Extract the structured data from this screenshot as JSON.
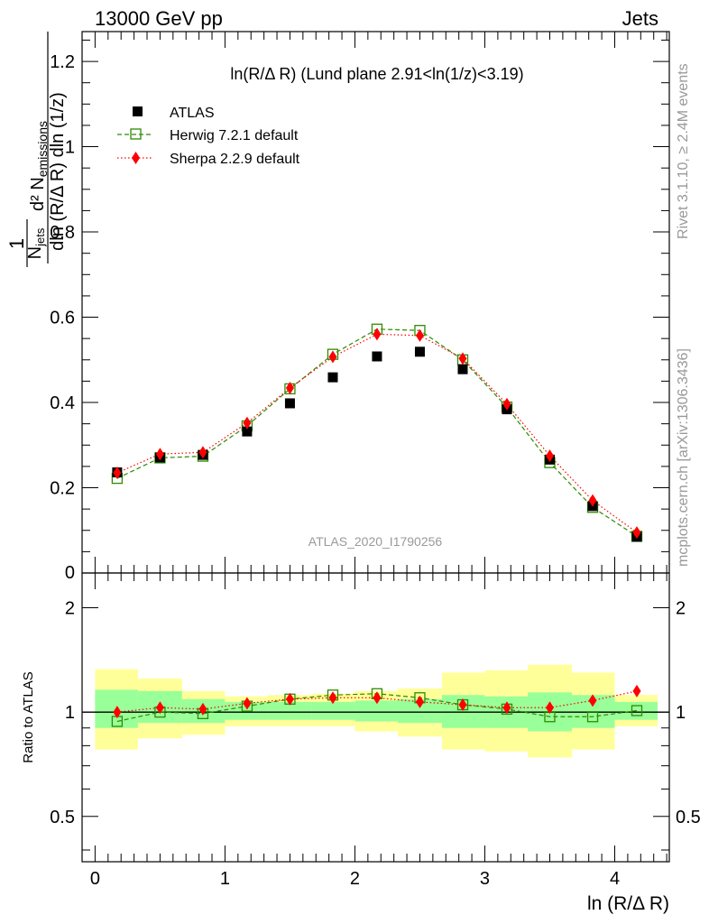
{
  "header": {
    "left": "13000 GeV pp",
    "right": "Jets"
  },
  "side_labels": {
    "rivet": "Rivet 3.1.10, ≥ 2.4M events",
    "mcplots": "mcplots.cern.ch [arXiv:1306.3436]"
  },
  "legend": {
    "atlas": "ATLAS",
    "herwig": "Herwig 7.2.1 default",
    "sherpa": "Sherpa 2.2.9 default"
  },
  "colors": {
    "atlas": "#000000",
    "herwig": "#2e8b00",
    "sherpa": "#ff0000",
    "band_inner": "#99ff99",
    "band_outer": "#ffff99"
  },
  "chart_data": {
    "type": "scatter",
    "title": "ln(R/Δ R) (Lund plane 2.91<ln(1/z)<3.19)",
    "watermark": "ATLAS_2020_I1790256",
    "xlabel": "ln (R/Δ R)",
    "ylabel": "1/N_jets d²N_emissions / dln(R/ΔR) dln(1/z)",
    "ratio_ylabel": "Ratio to ATLAS",
    "xlim": [
      -0.1,
      4.42
    ],
    "ylim": [
      0,
      1.27
    ],
    "ratio_ylim": [
      0.37,
      2.52
    ],
    "x_ticks": [
      "0",
      "1",
      "2",
      "3",
      "4"
    ],
    "y_ticks": [
      "0.2",
      "0.4",
      "0.6",
      "0.8",
      "1",
      "1.2"
    ],
    "y_tick_bottom": "0",
    "ratio_y_ticks": [
      "0.5",
      "1",
      "2"
    ],
    "bins": [
      [
        0,
        0.33
      ],
      [
        0.33,
        0.67
      ],
      [
        0.67,
        1.0
      ],
      [
        1.0,
        1.33
      ],
      [
        1.33,
        1.67
      ],
      [
        1.67,
        2.0
      ],
      [
        2.0,
        2.33
      ],
      [
        2.33,
        2.67
      ],
      [
        2.67,
        3.0
      ],
      [
        3.0,
        3.33
      ],
      [
        3.33,
        3.67
      ],
      [
        3.67,
        4.0
      ],
      [
        4.0,
        4.33
      ]
    ],
    "x": [
      0.17,
      0.5,
      0.83,
      1.17,
      1.5,
      1.83,
      2.17,
      2.5,
      2.83,
      3.17,
      3.5,
      3.83,
      4.17
    ],
    "series": [
      {
        "name": "ATLAS",
        "values": [
          0.236,
          0.271,
          0.277,
          0.332,
          0.398,
          0.459,
          0.508,
          0.519,
          0.478,
          0.384,
          0.266,
          0.157,
          0.085
        ]
      },
      {
        "name": "Herwig 7.2.1 default",
        "values": [
          0.222,
          0.27,
          0.274,
          0.345,
          0.432,
          0.513,
          0.572,
          0.569,
          0.5,
          0.389,
          0.259,
          0.154,
          0.086
        ]
      },
      {
        "name": "Sherpa 2.2.9 default",
        "values": [
          0.235,
          0.279,
          0.283,
          0.352,
          0.434,
          0.507,
          0.56,
          0.557,
          0.503,
          0.396,
          0.275,
          0.17,
          0.095
        ]
      }
    ],
    "ratio": {
      "herwig": [
        0.94,
        1.0,
        0.99,
        1.04,
        1.09,
        1.12,
        1.13,
        1.1,
        1.05,
        1.02,
        0.97,
        0.97,
        1.01
      ],
      "sherpa": [
        1.0,
        1.03,
        1.02,
        1.06,
        1.09,
        1.1,
        1.1,
        1.07,
        1.05,
        1.03,
        1.03,
        1.08,
        1.15
      ]
    },
    "band_inner": [
      [
        0.9,
        1.16
      ],
      [
        0.93,
        1.15
      ],
      [
        0.93,
        1.09
      ],
      [
        0.95,
        1.07
      ],
      [
        0.95,
        1.07
      ],
      [
        0.95,
        1.07
      ],
      [
        0.94,
        1.08
      ],
      [
        0.93,
        1.09
      ],
      [
        0.9,
        1.12
      ],
      [
        0.9,
        1.11
      ],
      [
        0.88,
        1.14
      ],
      [
        0.9,
        1.12
      ],
      [
        0.95,
        1.07
      ]
    ],
    "band_outer": [
      [
        0.78,
        1.33
      ],
      [
        0.84,
        1.25
      ],
      [
        0.86,
        1.15
      ],
      [
        0.91,
        1.11
      ],
      [
        0.91,
        1.12
      ],
      [
        0.91,
        1.13
      ],
      [
        0.88,
        1.15
      ],
      [
        0.85,
        1.17
      ],
      [
        0.78,
        1.3
      ],
      [
        0.77,
        1.32
      ],
      [
        0.74,
        1.37
      ],
      [
        0.78,
        1.3
      ],
      [
        0.91,
        1.12
      ]
    ]
  }
}
